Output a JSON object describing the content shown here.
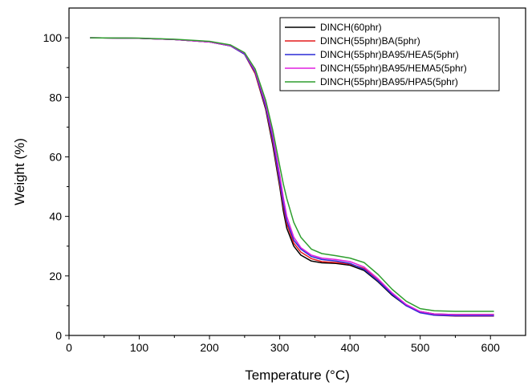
{
  "chart_data": {
    "type": "line",
    "title": "",
    "xlabel": "Temperature (°C)",
    "ylabel": "Weight (%)",
    "xlim": [
      0,
      650
    ],
    "ylim": [
      0,
      110
    ],
    "xticks": [
      0,
      100,
      200,
      300,
      400,
      500,
      600
    ],
    "yticks": [
      0,
      20,
      40,
      60,
      80,
      100
    ],
    "grid": false,
    "legend_position": "top-right",
    "series": [
      {
        "name": "DINCH(60phr)",
        "color": "#000000",
        "points": [
          [
            30,
            100
          ],
          [
            100,
            99.8
          ],
          [
            150,
            99.4
          ],
          [
            200,
            98.6
          ],
          [
            230,
            97.3
          ],
          [
            250,
            94.5
          ],
          [
            265,
            88
          ],
          [
            280,
            76
          ],
          [
            290,
            64
          ],
          [
            300,
            50
          ],
          [
            305,
            42
          ],
          [
            310,
            36
          ],
          [
            320,
            30
          ],
          [
            330,
            27
          ],
          [
            345,
            25
          ],
          [
            360,
            24.4
          ],
          [
            380,
            24.2
          ],
          [
            400,
            23.6
          ],
          [
            420,
            21.8
          ],
          [
            440,
            18
          ],
          [
            460,
            13.5
          ],
          [
            480,
            10
          ],
          [
            500,
            8
          ],
          [
            520,
            7.2
          ],
          [
            550,
            7
          ],
          [
            580,
            7
          ],
          [
            605,
            7
          ]
        ]
      },
      {
        "name": "DINCH(55phr)BA(5phr)",
        "color": "#e41a1c",
        "points": [
          [
            30,
            100
          ],
          [
            100,
            99.8
          ],
          [
            150,
            99.4
          ],
          [
            200,
            98.6
          ],
          [
            230,
            97.3
          ],
          [
            250,
            94.5
          ],
          [
            265,
            88
          ],
          [
            280,
            76.5
          ],
          [
            290,
            65
          ],
          [
            300,
            51
          ],
          [
            305,
            43.5
          ],
          [
            310,
            37.5
          ],
          [
            320,
            31
          ],
          [
            330,
            28
          ],
          [
            345,
            25.8
          ],
          [
            360,
            24.8
          ],
          [
            380,
            24.5
          ],
          [
            400,
            24
          ],
          [
            420,
            22.5
          ],
          [
            440,
            18.5
          ],
          [
            460,
            14
          ],
          [
            480,
            10.2
          ],
          [
            500,
            7.8
          ],
          [
            520,
            6.8
          ],
          [
            550,
            6.5
          ],
          [
            580,
            6.5
          ],
          [
            605,
            6.5
          ]
        ]
      },
      {
        "name": "DINCH(55phr)BA95/HEA5(5phr)",
        "color": "#2b2bd6",
        "points": [
          [
            30,
            100
          ],
          [
            100,
            99.8
          ],
          [
            150,
            99.4
          ],
          [
            200,
            98.6
          ],
          [
            230,
            97.3
          ],
          [
            250,
            94.5
          ],
          [
            265,
            88.5
          ],
          [
            280,
            77
          ],
          [
            290,
            66
          ],
          [
            300,
            52
          ],
          [
            305,
            44.5
          ],
          [
            310,
            38.5
          ],
          [
            320,
            32
          ],
          [
            330,
            29
          ],
          [
            345,
            26.5
          ],
          [
            360,
            25.5
          ],
          [
            380,
            25
          ],
          [
            400,
            24.2
          ],
          [
            420,
            22.2
          ],
          [
            440,
            18.3
          ],
          [
            460,
            13.8
          ],
          [
            480,
            10
          ],
          [
            500,
            7.6
          ],
          [
            520,
            6.8
          ],
          [
            550,
            6.6
          ],
          [
            580,
            6.6
          ],
          [
            605,
            6.6
          ]
        ]
      },
      {
        "name": "DINCH(55phr)BA95/HEMA5(5phr)",
        "color": "#e020e0",
        "points": [
          [
            30,
            100
          ],
          [
            100,
            99.8
          ],
          [
            150,
            99.4
          ],
          [
            200,
            98.6
          ],
          [
            230,
            97.4
          ],
          [
            250,
            94.8
          ],
          [
            265,
            89
          ],
          [
            280,
            78
          ],
          [
            290,
            67.5
          ],
          [
            300,
            54
          ],
          [
            305,
            46.5
          ],
          [
            310,
            40
          ],
          [
            320,
            33
          ],
          [
            330,
            29.5
          ],
          [
            345,
            27
          ],
          [
            360,
            26
          ],
          [
            380,
            25.5
          ],
          [
            400,
            24.8
          ],
          [
            420,
            23
          ],
          [
            440,
            19
          ],
          [
            460,
            14.3
          ],
          [
            480,
            10.4
          ],
          [
            500,
            8
          ],
          [
            520,
            7.2
          ],
          [
            550,
            7
          ],
          [
            580,
            7
          ],
          [
            605,
            7
          ]
        ]
      },
      {
        "name": "DINCH(55phr)BA95/HPA5(5phr)",
        "color": "#2e9e2e",
        "points": [
          [
            30,
            100
          ],
          [
            100,
            99.9
          ],
          [
            150,
            99.5
          ],
          [
            200,
            98.8
          ],
          [
            230,
            97.6
          ],
          [
            250,
            95
          ],
          [
            265,
            89.5
          ],
          [
            280,
            79
          ],
          [
            290,
            69
          ],
          [
            300,
            57
          ],
          [
            305,
            51
          ],
          [
            310,
            46
          ],
          [
            320,
            38
          ],
          [
            330,
            33
          ],
          [
            345,
            29
          ],
          [
            360,
            27.5
          ],
          [
            380,
            26.8
          ],
          [
            400,
            26
          ],
          [
            420,
            24.5
          ],
          [
            440,
            20.5
          ],
          [
            460,
            15.5
          ],
          [
            480,
            11.5
          ],
          [
            500,
            9
          ],
          [
            520,
            8.3
          ],
          [
            550,
            8.1
          ],
          [
            580,
            8.1
          ],
          [
            605,
            8.1
          ]
        ]
      }
    ]
  }
}
